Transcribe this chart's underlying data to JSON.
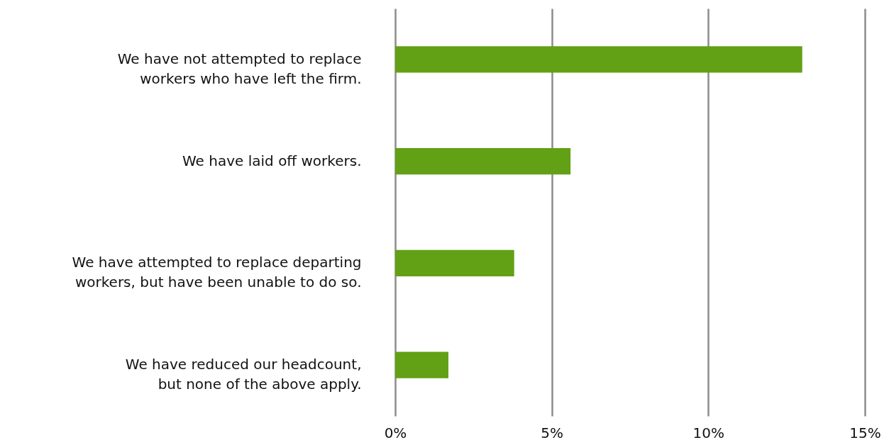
{
  "chart_data": {
    "type": "bar",
    "orientation": "horizontal",
    "categories": [
      "We have not attempted to replace\nworkers who have left the firm.",
      "We have laid off workers.",
      "We have attempted to replace departing\nworkers, but have been unable to do so.",
      "We have reduced our headcount,\nbut none of the above apply."
    ],
    "values": [
      13.0,
      5.6,
      3.8,
      1.7
    ],
    "color": "#62a015",
    "xlim": [
      0,
      15
    ],
    "xticks": [
      {
        "value": 0,
        "label": "0%"
      },
      {
        "value": 5,
        "label": "5%"
      },
      {
        "value": 10,
        "label": "10%"
      },
      {
        "value": 15,
        "label": "15%"
      }
    ],
    "grid": "x"
  }
}
